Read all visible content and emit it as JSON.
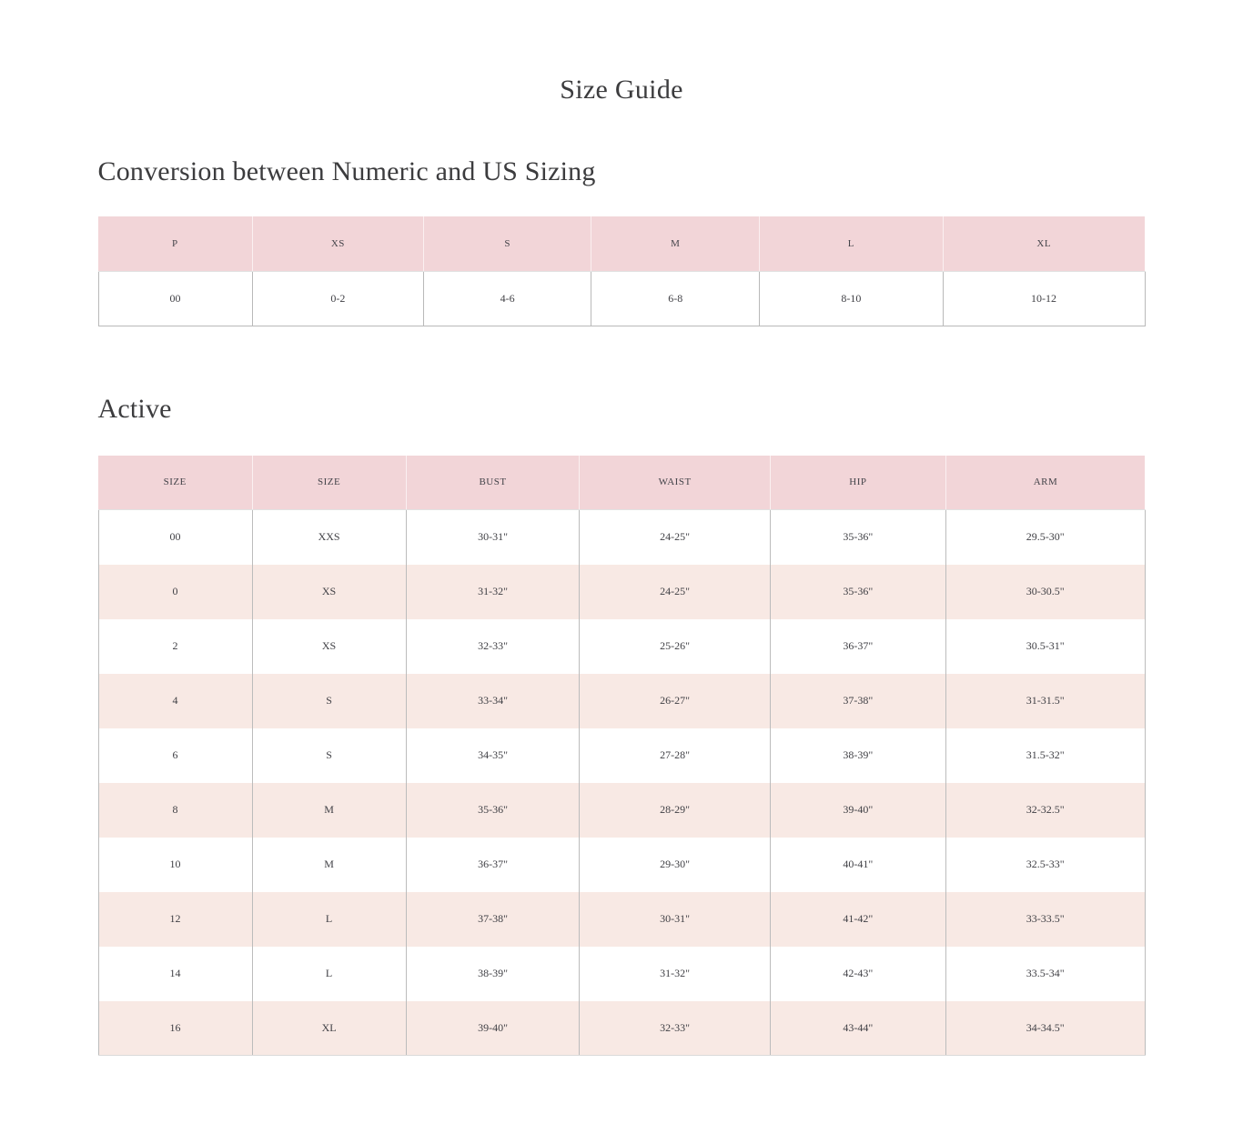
{
  "page": {
    "title": "Size Guide"
  },
  "colors": {
    "table_header_bg": "#f2d5d8",
    "table_stripe_bg": "#f8e9e4",
    "grid_line": "#b9b9b9",
    "text": "#3f3f42"
  },
  "sections": [
    {
      "heading": "Conversion between Numeric and US Sizing",
      "table": {
        "headers": [
          "P",
          "XS",
          "S",
          "M",
          "L",
          "XL"
        ],
        "rows": [
          [
            "00",
            "0-2",
            "4-6",
            "6-8",
            "8-10",
            "10-12"
          ]
        ]
      }
    },
    {
      "heading": "Active",
      "table": {
        "headers": [
          "SIZE",
          "SIZE",
          "BUST",
          "WAIST",
          "HIP",
          "ARM"
        ],
        "rows": [
          [
            "00",
            "XXS",
            "30-31\"",
            "24-25\"",
            "35-36\"",
            "29.5-30\""
          ],
          [
            "0",
            "XS",
            "31-32\"",
            "24-25\"",
            "35-36\"",
            "30-30.5\""
          ],
          [
            "2",
            "XS",
            "32-33\"",
            "25-26\"",
            "36-37\"",
            "30.5-31\""
          ],
          [
            "4",
            "S",
            "33-34\"",
            "26-27\"",
            "37-38\"",
            "31-31.5\""
          ],
          [
            "6",
            "S",
            "34-35\"",
            "27-28\"",
            "38-39\"",
            "31.5-32\""
          ],
          [
            "8",
            "M",
            "35-36\"",
            "28-29\"",
            "39-40\"",
            "32-32.5\""
          ],
          [
            "10",
            "M",
            "36-37\"",
            "29-30\"",
            "40-41\"",
            "32.5-33\""
          ],
          [
            "12",
            "L",
            "37-38\"",
            "30-31\"",
            "41-42\"",
            "33-33.5\""
          ],
          [
            "14",
            "L",
            "38-39\"",
            "31-32\"",
            "42-43\"",
            "33.5-34\""
          ],
          [
            "16",
            "XL",
            "39-40\"",
            "32-33\"",
            "43-44\"",
            "34-34.5\""
          ]
        ]
      }
    }
  ]
}
